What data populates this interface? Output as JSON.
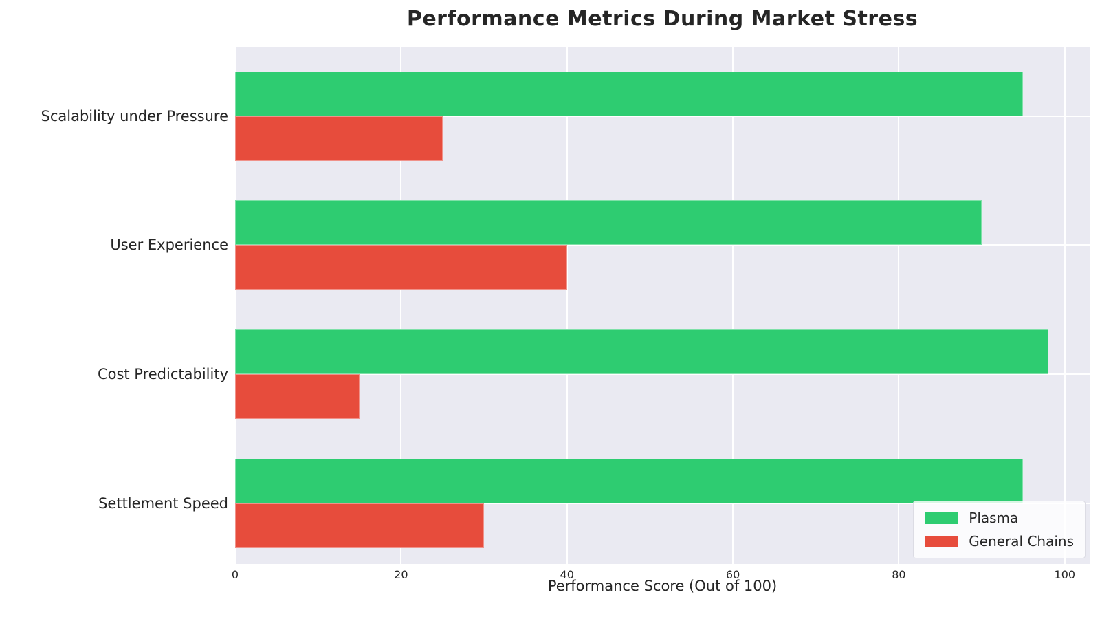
{
  "chart_data": {
    "type": "bar",
    "orientation": "horizontal",
    "title": "Performance Metrics During Market Stress",
    "xlabel": "Performance Score (Out of 100)",
    "ylabel": "",
    "categories": [
      "Scalability under Pressure",
      "User Experience",
      "Cost Predictability",
      "Settlement Speed"
    ],
    "series": [
      {
        "name": "Plasma",
        "color": "#2ecc71",
        "edge_color": "#7fe0a8",
        "values": [
          95,
          90,
          98,
          95
        ]
      },
      {
        "name": "General Chains",
        "color": "#e74c3c",
        "edge_color": "#f0928a",
        "values": [
          25,
          40,
          15,
          30
        ]
      }
    ],
    "x_ticks": [
      "0",
      "20",
      "40",
      "60",
      "80",
      "100"
    ],
    "x_tick_values": [
      0,
      20,
      40,
      60,
      80,
      100
    ],
    "xlim": [
      0,
      103
    ],
    "grid": true,
    "grid_color": "#ffffff",
    "plot_bg": "#eaeaf2",
    "figure_bg": "#ffffff",
    "text_color": "#262626",
    "legend_position": "lower right"
  }
}
